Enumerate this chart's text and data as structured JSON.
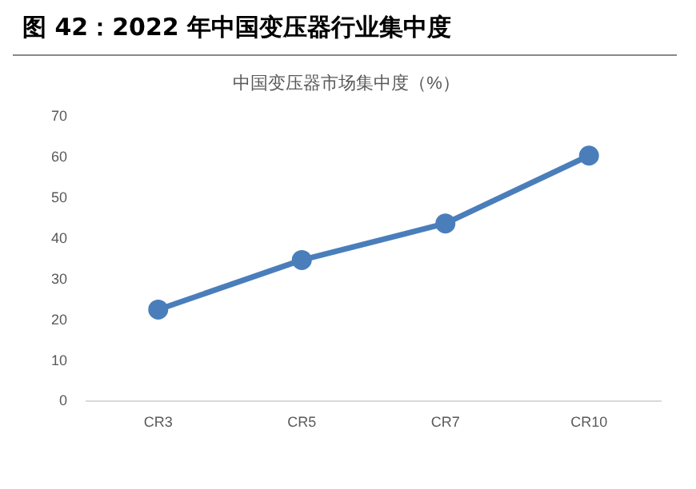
{
  "chart_data": {
    "type": "line",
    "title": "图 42：2022 年中国变压器行业集中度",
    "subtitle": "中国变压器市场集中度（%）",
    "categories": [
      "CR3",
      "CR5",
      "CR7",
      "CR10"
    ],
    "series": [
      {
        "color": "#4a7ebb",
        "values": [
          22.6,
          34.8,
          43.8,
          60.5
        ]
      }
    ],
    "ylim": [
      0,
      70
    ],
    "yticks": [
      0,
      10,
      20,
      30,
      40,
      50,
      60,
      70
    ],
    "grid": false,
    "legend": false,
    "marker": "circle",
    "line_style": "solid"
  }
}
